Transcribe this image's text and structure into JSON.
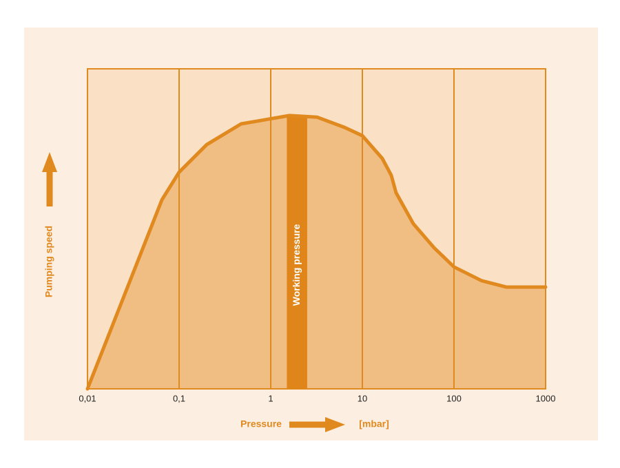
{
  "chart_data": {
    "type": "area",
    "x": [
      0.01,
      0.065,
      0.1,
      0.2,
      0.475,
      1.6,
      3.2,
      6.4,
      10,
      16.5,
      20.7,
      23.3,
      36,
      60.5,
      100,
      200,
      372,
      1000
    ],
    "values": [
      0,
      59.1,
      67.7,
      76.3,
      82.8,
      85.4,
      84.9,
      81.7,
      79.1,
      72.0,
      66.7,
      61.3,
      51.6,
      44.1,
      38.1,
      33.8,
      31.8,
      31.8
    ],
    "color": "#e0891e",
    "xscale": "log",
    "xlim": [
      0.01,
      1000
    ],
    "ylim": [
      0,
      100
    ],
    "xticks": [
      {
        "value": 0.01,
        "label": "0,01"
      },
      {
        "value": 0.1,
        "label": "0,1"
      },
      1,
      10,
      100,
      1000
    ],
    "grid": true,
    "y_label": "Pumping speed",
    "x_label": "Pressure",
    "x_unit": "[mbar]",
    "annotation": {
      "text": "Working pressure",
      "range": [
        1.5,
        2.5
      ]
    }
  }
}
